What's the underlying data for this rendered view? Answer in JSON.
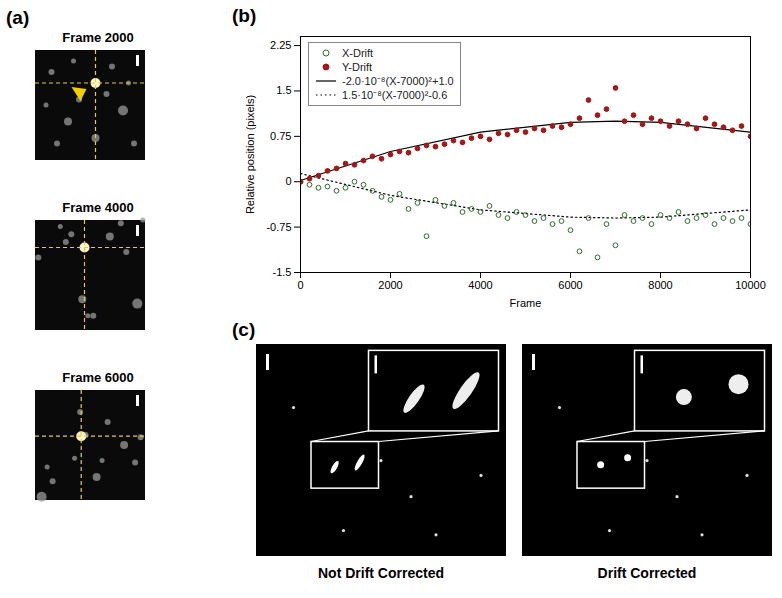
{
  "panel_labels": [
    "(a)",
    "(b)",
    "(c)"
  ],
  "frames": [
    "Frame 2000",
    "Frame 4000",
    "Frame 6000"
  ],
  "images": [
    "Not Drift Corrected",
    "Drift Corrected"
  ],
  "chart_data": {
    "type": "scatter",
    "x_label": "Frame",
    "y_label": "Relative position (pixels)",
    "xlim": [
      0,
      10000
    ],
    "xticks": [
      0,
      2000,
      4000,
      6000,
      8000,
      10000
    ],
    "ylim": [
      -1.5,
      2.4
    ],
    "yticks": [
      -1.5,
      -0.75,
      0,
      0.75,
      1.5,
      2.25
    ],
    "grid": false,
    "legend": "upper left",
    "series": [
      {
        "name": "X-Drift",
        "type": "scatter",
        "marker": "open circle",
        "color": "#2e6b2e",
        "x": [
          0,
          200,
          400,
          600,
          800,
          1000,
          1200,
          1400,
          1600,
          1800,
          2000,
          2200,
          2400,
          2600,
          2800,
          3000,
          3200,
          3400,
          3600,
          3800,
          4000,
          4200,
          4400,
          4600,
          4800,
          5000,
          5200,
          5400,
          5600,
          5800,
          6000,
          6200,
          6400,
          6600,
          6800,
          7000,
          7200,
          7400,
          7600,
          7800,
          8000,
          8200,
          8400,
          8600,
          8800,
          9000,
          9200,
          9400,
          9600,
          9800,
          10000
        ],
        "values": [
          0.0,
          -0.05,
          -0.1,
          -0.08,
          -0.15,
          -0.1,
          0.0,
          -0.05,
          -0.15,
          -0.25,
          -0.3,
          -0.2,
          -0.45,
          -0.35,
          -0.9,
          -0.3,
          -0.4,
          -0.35,
          -0.5,
          -0.45,
          -0.5,
          -0.4,
          -0.55,
          -0.6,
          -0.5,
          -0.55,
          -0.65,
          -0.6,
          -0.7,
          -0.65,
          -0.8,
          -1.15,
          -0.6,
          -1.25,
          -0.7,
          -1.05,
          -0.55,
          -0.65,
          -0.6,
          -0.7,
          -0.55,
          -0.6,
          -0.5,
          -0.65,
          -0.6,
          -0.55,
          -0.7,
          -0.6,
          -0.65,
          -0.6,
          -0.7
        ]
      },
      {
        "name": "Y-Drift",
        "type": "scatter",
        "marker": "filled circle",
        "color": "#a01818",
        "x": [
          0,
          200,
          400,
          600,
          800,
          1000,
          1200,
          1400,
          1600,
          1800,
          2000,
          2200,
          2400,
          2600,
          2800,
          3000,
          3200,
          3400,
          3600,
          3800,
          4000,
          4200,
          4400,
          4600,
          4800,
          5000,
          5200,
          5400,
          5600,
          5800,
          6000,
          6200,
          6400,
          6600,
          6800,
          7000,
          7200,
          7400,
          7600,
          7800,
          8000,
          8200,
          8400,
          8600,
          8800,
          9000,
          9200,
          9400,
          9600,
          9800,
          10000
        ],
        "values": [
          0.0,
          0.05,
          0.1,
          0.18,
          0.22,
          0.3,
          0.28,
          0.35,
          0.42,
          0.38,
          0.45,
          0.5,
          0.48,
          0.55,
          0.6,
          0.58,
          0.62,
          0.68,
          0.65,
          0.72,
          0.75,
          0.7,
          0.8,
          0.78,
          0.85,
          0.82,
          0.88,
          0.85,
          0.92,
          0.9,
          0.95,
          1.05,
          1.35,
          1.1,
          1.2,
          1.55,
          1.0,
          1.1,
          0.95,
          1.05,
          1.0,
          0.92,
          1.0,
          0.95,
          0.88,
          1.05,
          0.95,
          0.9,
          0.85,
          0.92,
          0.75
        ]
      },
      {
        "name": "-2.0·10⁻⁸(X-7000)²+1.0",
        "type": "line",
        "line_style": "solid",
        "color": "#000000",
        "x": [
          0,
          2000,
          4000,
          6000,
          7000,
          8000,
          10000
        ],
        "values": [
          0.02,
          0.5,
          0.82,
          0.98,
          1.0,
          0.98,
          0.82
        ]
      },
      {
        "name": "1.5·10⁻⁸(X-7000)²-0.6",
        "type": "line",
        "line_style": "dotted",
        "color": "#000000",
        "x": [
          0,
          2000,
          4000,
          6000,
          7000,
          8000,
          10000
        ],
        "values": [
          0.135,
          -0.225,
          -0.465,
          -0.585,
          -0.6,
          -0.585,
          -0.465
        ]
      }
    ]
  }
}
